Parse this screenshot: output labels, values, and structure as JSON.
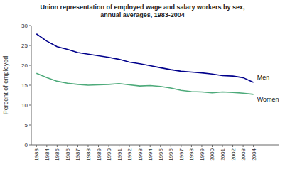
{
  "chart_data": {
    "type": "line",
    "title": "Union representation of employed wage and salary workers by sex,\nannual averages, 1983-2004",
    "y_label": "Percent of employed",
    "x": [
      1983,
      1984,
      1985,
      1986,
      1987,
      1988,
      1989,
      1990,
      1991,
      1992,
      1993,
      1994,
      1995,
      1996,
      1997,
      1998,
      1999,
      2000,
      2001,
      2002,
      2003,
      2004
    ],
    "series": [
      {
        "name": "Men",
        "color": "#00008B",
        "values": [
          27.9,
          26.1,
          24.7,
          24.0,
          23.2,
          22.8,
          22.4,
          22.0,
          21.5,
          20.8,
          20.4,
          19.9,
          19.4,
          18.9,
          18.5,
          18.3,
          18.1,
          17.8,
          17.4,
          17.3,
          16.9,
          15.7
        ]
      },
      {
        "name": "Women",
        "color": "#4DAA7A",
        "values": [
          18.0,
          16.9,
          16.0,
          15.5,
          15.2,
          15.0,
          15.1,
          15.2,
          15.4,
          15.1,
          14.8,
          14.9,
          14.7,
          14.3,
          13.7,
          13.4,
          13.3,
          13.1,
          13.3,
          13.2,
          13.0,
          12.7
        ]
      }
    ],
    "xlim": [
      1982.5,
      2006.5
    ],
    "xticks": [
      1983,
      1984,
      1985,
      1986,
      1987,
      1988,
      1989,
      1990,
      1991,
      1992,
      1993,
      1994,
      1995,
      1996,
      1997,
      1998,
      1999,
      2000,
      2001,
      2002,
      2003,
      2004
    ],
    "ylim": [
      0,
      30
    ],
    "yticks": [
      0,
      5,
      10,
      15,
      20,
      25,
      30
    ],
    "grid": false
  }
}
